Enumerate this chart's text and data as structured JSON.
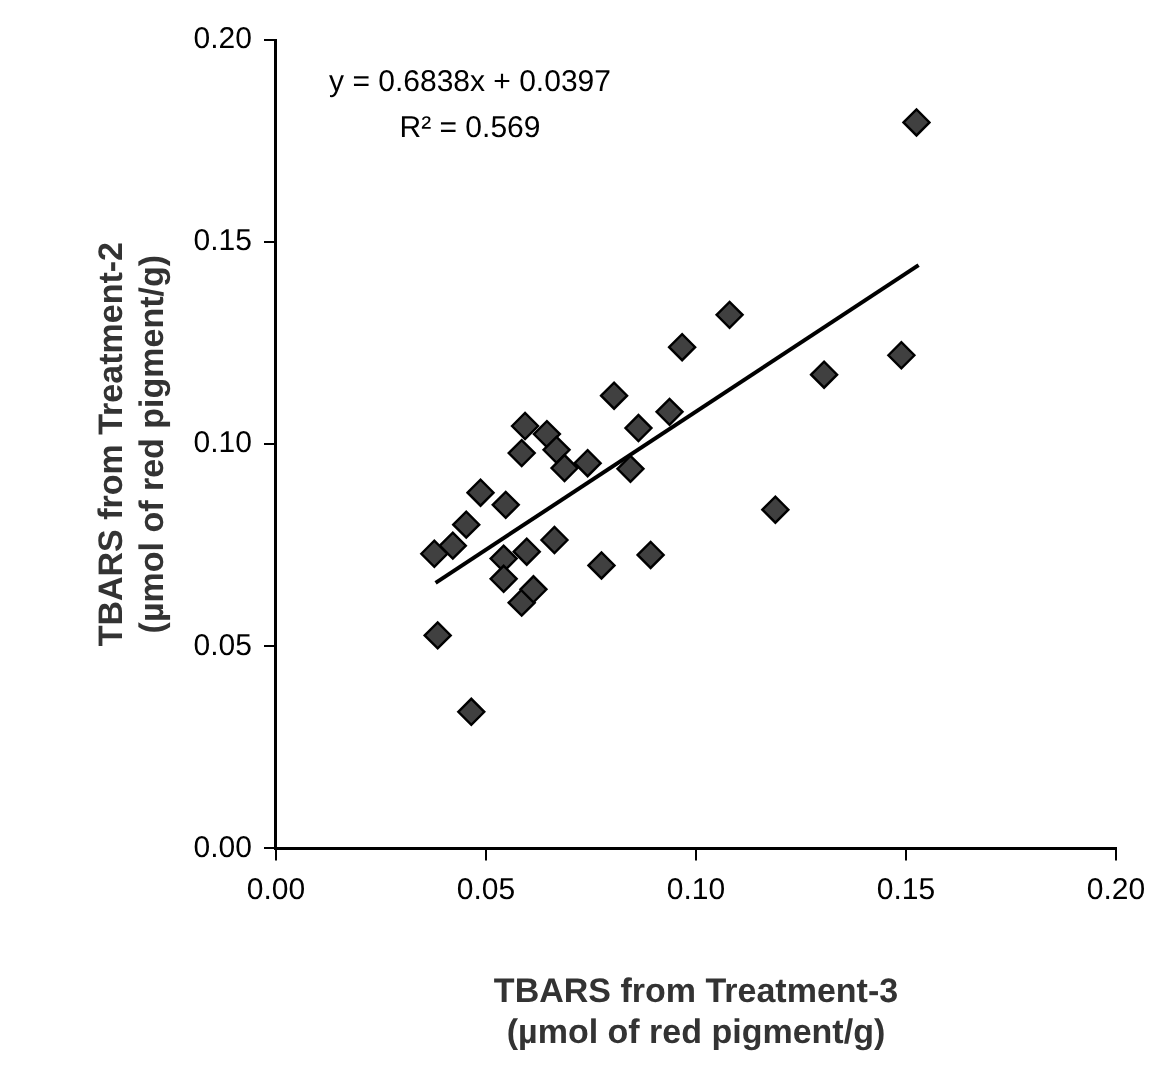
{
  "chart_data": {
    "type": "scatter",
    "xlabel": "TBARS from Treatment-3\n(µmol of red pigment/g)",
    "ylabel": "TBARS from Treatment-2\n(µmol of red pigment/g)",
    "annotations": [
      "y = 0.6838x + 0.0397",
      "R² = 0.569"
    ],
    "xlim": [
      0,
      0.2
    ],
    "ylim": [
      0,
      0.2
    ],
    "xticks": [
      {
        "value": 0,
        "label": "0.00"
      },
      {
        "value": 0.05,
        "label": "0.05"
      },
      {
        "value": 0.1,
        "label": "0.10"
      },
      {
        "value": 0.15,
        "label": "0.15"
      },
      {
        "value": 0.2,
        "label": "0.20"
      }
    ],
    "yticks": [
      {
        "value": 0,
        "label": "0.00"
      },
      {
        "value": 0.05,
        "label": "0.05"
      },
      {
        "value": 0.1,
        "label": "0.10"
      },
      {
        "value": 0.15,
        "label": "0.15"
      },
      {
        "value": 0.2,
        "label": "0.20"
      }
    ],
    "grid": false,
    "legend": false,
    "series": [
      {
        "marker": "diamond",
        "color": "#404040",
        "x": [
          0.0967,
          0.0805,
          0.0937,
          0.0863,
          0.0593,
          0.0585,
          0.0645,
          0.0668,
          0.0687,
          0.0742,
          0.0844,
          0.0487,
          0.0547,
          0.0453,
          0.0421,
          0.0377,
          0.0542,
          0.0597,
          0.0663,
          0.0542,
          0.0585,
          0.0613,
          0.0775,
          0.0892,
          0.0385,
          0.0465,
          0.1525,
          0.108,
          0.1489,
          0.1305,
          0.1189
        ],
        "values": [
          0.124,
          0.112,
          0.108,
          0.104,
          0.1045,
          0.0978,
          0.1025,
          0.0986,
          0.0941,
          0.0953,
          0.0939,
          0.088,
          0.085,
          0.0801,
          0.0749,
          0.0729,
          0.0717,
          0.0734,
          0.0763,
          0.0667,
          0.0608,
          0.0641,
          0.07,
          0.0726,
          0.0527,
          0.0338,
          0.1796,
          0.132,
          0.122,
          0.1172,
          0.0838
        ]
      },
      {
        "type": "line",
        "marker": "none",
        "color": "#000000",
        "x": [
          0.038,
          0.153
        ],
        "values": [
          0.0657,
          0.1443
        ]
      }
    ]
  }
}
